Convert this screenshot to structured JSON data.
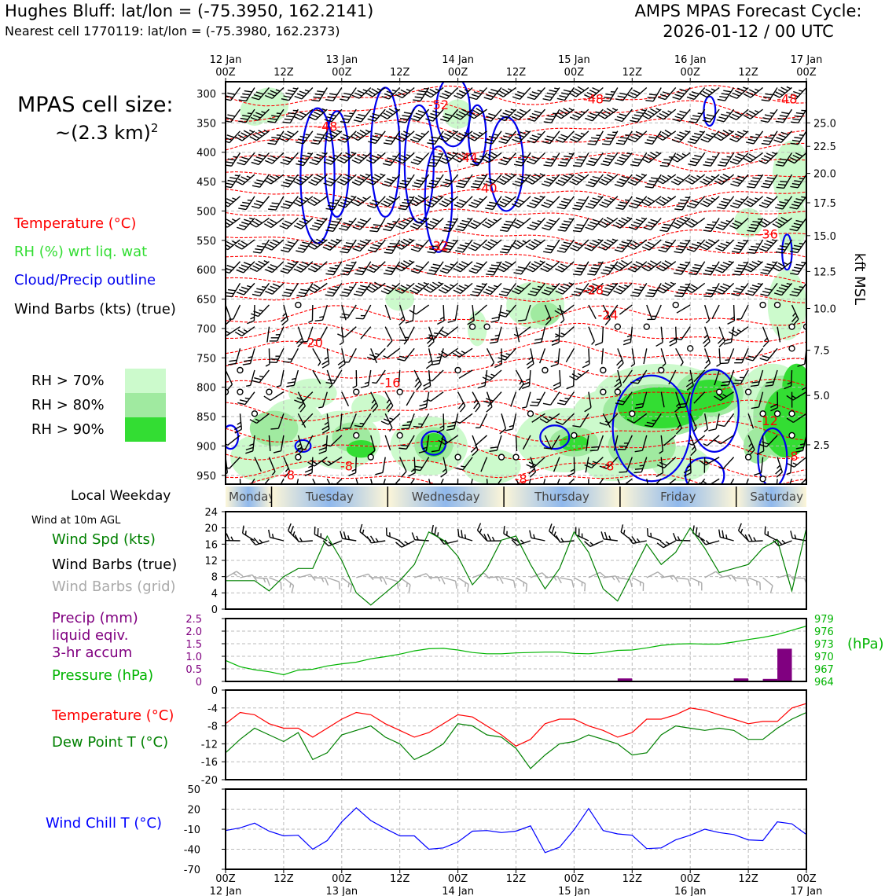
{
  "header": {
    "site": "Hughes Bluff: lat/lon = (-75.3950, 162.2141)",
    "cell": "Nearest cell 1770119: lat/lon = (-75.3980, 162.2373)",
    "model": "AMPS MPAS Forecast Cycle:",
    "cycle": "2026-01-12 / 00 UTC",
    "cell_size_label": "MPAS cell size:",
    "cell_size_value": "~(2.3 km)",
    "cell_size_exp": "2"
  },
  "legend": {
    "temperature": "Temperature (°C)",
    "rh": "RH (%) wrt liq. wat",
    "cloud": "Cloud/Precip outline",
    "wind": "Wind Barbs (kts) (true)",
    "rh70": "RH > 70%",
    "rh80": "RH > 80%",
    "rh90": "RH > 90%"
  },
  "colors": {
    "temperature": "#ff0000",
    "rh": "#33dd33",
    "cloud": "#0000ee",
    "rh70": "#ccfacc",
    "rh80": "#a0eaa0",
    "rh90": "#33dd33",
    "precip": "#800080",
    "pressure": "#00b400",
    "dewpoint": "#008000",
    "windchill": "#0000ff",
    "grid_barbs": "#aaaaaa"
  },
  "weekday_label": "Local Weekday",
  "weekdays": [
    "Monday",
    "Tuesday",
    "Wednesday",
    "Thursday",
    "Friday",
    "Saturday"
  ],
  "top_axis": {
    "dates": [
      "12 Jan",
      "13 Jan",
      "14 Jan",
      "15 Jan",
      "16 Jan",
      "17 Jan"
    ],
    "times": [
      "00Z",
      "12Z",
      "00Z",
      "12Z",
      "00Z",
      "12Z",
      "00Z",
      "12Z",
      "00Z",
      "12Z",
      "00Z"
    ]
  },
  "bottom_axis": {
    "times": [
      "00Z",
      "12Z",
      "00Z",
      "12Z",
      "00Z",
      "12Z",
      "00Z",
      "12Z",
      "00Z",
      "12Z",
      "00Z"
    ],
    "dates": [
      "12 Jan",
      "13 Jan",
      "14 Jan",
      "15 Jan",
      "16 Jan",
      "17 Jan"
    ]
  },
  "wind_panel_labels": {
    "header": "Wind at 10m AGL",
    "speed": "Wind Spd (kts)",
    "barbs": "Wind Barbs (true)",
    "grid": "Wind Barbs (grid)"
  },
  "precip_panel_labels": {
    "precip1": "Precip (mm)",
    "precip2": "liquid eqiv.",
    "precip3": "3-hr accum",
    "pressure": "Pressure (hPa)",
    "right_unit": "(hPa)"
  },
  "temp_panel_labels": {
    "temp": "Temperature (°C)",
    "dew": "Dew Point T (°C)"
  },
  "windchill_label": "Wind Chill T (°C)",
  "chart_data": [
    {
      "type": "heatmap",
      "name": "vertical cross-section",
      "y_left_ticks": [
        "300",
        "350",
        "400",
        "450",
        "500",
        "550",
        "600",
        "650",
        "700",
        "750",
        "800",
        "850",
        "900",
        "950"
      ],
      "y_left_values": [
        300,
        350,
        400,
        450,
        500,
        550,
        600,
        650,
        700,
        750,
        800,
        850,
        900,
        950
      ],
      "ylim": [
        280,
        965
      ],
      "y_right_label": "kft MSL",
      "y_right_ticks": [
        "25.0",
        "22.5",
        "20.0",
        "17.5",
        "15.0",
        "12.5",
        "10.0",
        "7.5",
        "5.0",
        "2.5"
      ],
      "y_right_pressure": [
        350,
        390,
        436,
        486,
        542,
        603,
        666,
        737,
        814,
        898
      ],
      "temp_labels": [
        {
          "text": "-52",
          "t": 44,
          "p": 320
        },
        {
          "text": "-48",
          "t": 76,
          "p": 310
        },
        {
          "text": "-48",
          "t": 116,
          "p": 310
        },
        {
          "text": "-48",
          "t": 21,
          "p": 357
        },
        {
          "text": "-44",
          "t": 50,
          "p": 410
        },
        {
          "text": "-40",
          "t": 54,
          "p": 462
        },
        {
          "text": "-32",
          "t": 44,
          "p": 560
        },
        {
          "text": "-36",
          "t": 112,
          "p": 540
        },
        {
          "text": "-28",
          "t": 76,
          "p": 635
        },
        {
          "text": "-24",
          "t": 79,
          "p": 678
        },
        {
          "text": "-20",
          "t": 18,
          "p": 725
        },
        {
          "text": "-16",
          "t": 34,
          "p": 793
        },
        {
          "text": "-12",
          "t": 112,
          "p": 858
        },
        {
          "text": "-8",
          "t": 13,
          "p": 950
        },
        {
          "text": "-8",
          "t": 25,
          "p": 935
        },
        {
          "text": "-8",
          "t": 61,
          "p": 957
        },
        {
          "text": "-8",
          "t": 79,
          "p": 935
        },
        {
          "text": "-8",
          "t": 117,
          "p": 918
        }
      ]
    },
    {
      "type": "line",
      "name": "10m wind speed",
      "ylim": [
        0,
        24
      ],
      "y_ticks": [
        0,
        4,
        8,
        12,
        16,
        20,
        24
      ],
      "x_hours": [
        0,
        6,
        9,
        12,
        15,
        18,
        21,
        24,
        27,
        30,
        33,
        36,
        39,
        42,
        45,
        48,
        51,
        54,
        57,
        60,
        63,
        66,
        69,
        72,
        75,
        78,
        81,
        84,
        87,
        90,
        93,
        96,
        99,
        102,
        105,
        108,
        111,
        114,
        117,
        120
      ],
      "series": [
        {
          "values": [
            7,
            7,
            4.5,
            8,
            10,
            10,
            18,
            12,
            4,
            1,
            4,
            7,
            11,
            19,
            17,
            13,
            6,
            10,
            17,
            18,
            11,
            5,
            10,
            19,
            14,
            5,
            2,
            9,
            16,
            11,
            14,
            20,
            15,
            9,
            10,
            11,
            15,
            17,
            4.5,
            20
          ]
        }
      ]
    },
    {
      "type": "bar",
      "name": "precip and pressure",
      "precip_ylim": [
        0,
        2.5
      ],
      "precip_ticks": [
        "0",
        "0.5",
        "1.0",
        "1.5",
        "2.0",
        "2.5"
      ],
      "pressure_ylim": [
        964,
        979
      ],
      "pressure_ticks": [
        "979",
        "976",
        "973",
        "970",
        "967",
        "964"
      ],
      "precip_x_hours": [
        84,
        108,
        114,
        117
      ],
      "precip_values": [
        0.12,
        0.12,
        0.1,
        1.3
      ],
      "pressure_x_hours": [
        0,
        3,
        6,
        9,
        12,
        15,
        18,
        21,
        24,
        27,
        30,
        33,
        36,
        39,
        42,
        45,
        48,
        51,
        54,
        57,
        60,
        63,
        66,
        69,
        72,
        75,
        78,
        81,
        84,
        87,
        90,
        93,
        96,
        99,
        102,
        105,
        108,
        111,
        114,
        117,
        120
      ],
      "pressure_values": [
        969.0,
        967.5,
        966.8,
        966.3,
        965.6,
        966.7,
        966.9,
        967.7,
        968.2,
        968.6,
        969.4,
        969.9,
        970.5,
        971.3,
        971.8,
        971.9,
        971.5,
        970.9,
        970.6,
        970.6,
        970.8,
        970.9,
        971.0,
        971.0,
        970.7,
        970.6,
        970.9,
        971.4,
        971.5,
        972.0,
        972.6,
        972.9,
        973.0,
        972.9,
        972.9,
        973.4,
        974.0,
        974.5,
        975.2,
        976.2,
        977.2
      ]
    },
    {
      "type": "line",
      "name": "temperature and dew point",
      "ylim": [
        -20,
        0
      ],
      "y_ticks": [
        0,
        -4,
        -8,
        -12,
        -16,
        -20
      ],
      "x_hours": [
        0,
        3,
        6,
        9,
        12,
        15,
        18,
        21,
        24,
        27,
        30,
        33,
        36,
        39,
        42,
        45,
        48,
        51,
        54,
        57,
        60,
        63,
        66,
        69,
        72,
        75,
        78,
        81,
        84,
        87,
        90,
        93,
        96,
        99,
        102,
        105,
        108,
        111,
        114,
        117,
        120
      ],
      "series": [
        {
          "values": [
            -7.5,
            -5,
            -5.5,
            -7.5,
            -8.5,
            -8.5,
            -10.5,
            -8.5,
            -6.5,
            -5,
            -5.5,
            -7.5,
            -9,
            -10.5,
            -9.5,
            -7.5,
            -5.5,
            -6,
            -8,
            -10,
            -12.5,
            -11,
            -7.5,
            -6.5,
            -6.5,
            -8,
            -9,
            -10.5,
            -9.5,
            -6.5,
            -6.5,
            -5.5,
            -4,
            -4.5,
            -5.5,
            -6.5,
            -7.5,
            -7,
            -7,
            -4,
            -3
          ]
        },
        {
          "values": [
            -14,
            -11,
            -8.5,
            -10,
            -11.5,
            -9.5,
            -15.5,
            -14,
            -10,
            -9,
            -8,
            -10.5,
            -12,
            -15.5,
            -14,
            -12,
            -7.5,
            -8,
            -10,
            -10.5,
            -13,
            -17.5,
            -14.5,
            -12,
            -11.5,
            -10,
            -11,
            -12,
            -14.5,
            -14,
            -10,
            -8,
            -8.5,
            -9,
            -8.5,
            -9,
            -11,
            -11,
            -8.5,
            -6.5,
            -5
          ]
        }
      ]
    },
    {
      "type": "line",
      "name": "wind chill",
      "ylim": [
        -70,
        50
      ],
      "y_ticks": [
        50,
        20,
        -10,
        -40,
        -70
      ],
      "x_hours": [
        0,
        3,
        6,
        9,
        12,
        15,
        18,
        21,
        24,
        27,
        30,
        33,
        36,
        39,
        42,
        45,
        48,
        51,
        54,
        57,
        60,
        63,
        66,
        69,
        72,
        75,
        78,
        81,
        84,
        87,
        90,
        93,
        96,
        99,
        102,
        105,
        108,
        111,
        114,
        117,
        120
      ],
      "series": [
        {
          "values": [
            -12,
            -8,
            -1,
            -13,
            -20,
            -19,
            -40,
            -27,
            1,
            22,
            3,
            -9,
            -20,
            -20,
            -40,
            -38,
            -29,
            -13,
            -12,
            -15,
            -13,
            -5,
            -45,
            -37,
            -11,
            21,
            -12,
            -17,
            -19,
            -39,
            -38,
            -26,
            -19,
            -10,
            -15,
            -18,
            -26,
            -27,
            1,
            -2,
            -18
          ]
        }
      ]
    }
  ]
}
